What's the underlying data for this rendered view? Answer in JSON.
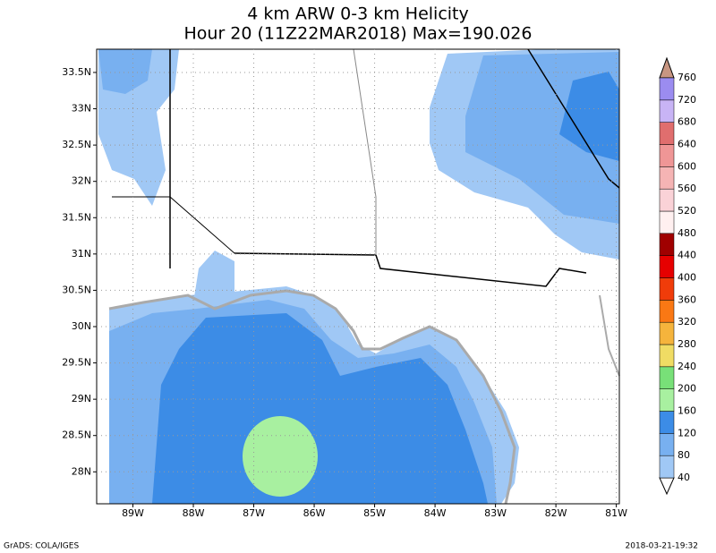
{
  "chart_data": {
    "type": "map",
    "title": "4 km ARW 0-3 km Helicity",
    "subtitle": "Hour 20 (11Z22MAR2018) Max=190.026",
    "xlim": [
      -89.6,
      -80.95
    ],
    "ylim": [
      27.56,
      33.82
    ],
    "xticks": [
      {
        "value": -89,
        "label": "89W"
      },
      {
        "value": -88,
        "label": "88W"
      },
      {
        "value": -87,
        "label": "87W"
      },
      {
        "value": -86,
        "label": "86W"
      },
      {
        "value": -85,
        "label": "85W"
      },
      {
        "value": -84,
        "label": "84W"
      },
      {
        "value": -83,
        "label": "83W"
      },
      {
        "value": -82,
        "label": "82W"
      },
      {
        "value": -81,
        "label": "81W"
      }
    ],
    "yticks": [
      {
        "value": 28,
        "label": "28N"
      },
      {
        "value": 28.5,
        "label": "28.5N"
      },
      {
        "value": 29,
        "label": "29N"
      },
      {
        "value": 29.5,
        "label": "29.5N"
      },
      {
        "value": 30,
        "label": "30N"
      },
      {
        "value": 30.5,
        "label": "30.5N"
      },
      {
        "value": 31,
        "label": "31N"
      },
      {
        "value": 31.5,
        "label": "31.5N"
      },
      {
        "value": 32,
        "label": "32N"
      },
      {
        "value": 32.5,
        "label": "32.5N"
      },
      {
        "value": 33,
        "label": "33N"
      },
      {
        "value": 33.5,
        "label": "33.5N"
      }
    ],
    "grid": true,
    "levels": [
      40,
      80,
      120,
      160,
      200,
      240,
      280,
      320,
      360,
      400,
      440,
      480,
      520,
      560,
      600,
      640,
      680,
      720,
      760
    ],
    "colors": [
      "#a0c8f5",
      "#78b0f0",
      "#3c8ce6",
      "#a8f0a0",
      "#78e078",
      "#f0dc64",
      "#f5b43c",
      "#fa7814",
      "#f03c0a",
      "#e60000",
      "#a00000",
      "#fff0f0",
      "#fad2d7",
      "#f5b4b4",
      "#ef9696",
      "#e06e6e",
      "#c8b4f5",
      "#9b8cf0",
      "#4646d2"
    ],
    "under_color": "#ffffff",
    "over_color": "#c89682",
    "footer_left": "GrADS: COLA/IGES",
    "footer_right": "2018-03-21-19:32"
  }
}
